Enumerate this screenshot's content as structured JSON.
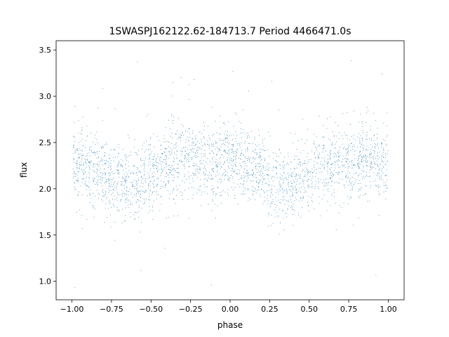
{
  "chart_data": {
    "type": "scatter",
    "title": "1SWASPJ162122.62-184713.7 Period 4466471.0s",
    "xlabel": "phase",
    "ylabel": "flux",
    "xlim": [
      -1.1,
      1.1
    ],
    "ylim": [
      0.8,
      3.6
    ],
    "x_ticks": [
      -1.0,
      -0.75,
      -0.5,
      -0.25,
      0.0,
      0.25,
      0.5,
      0.75,
      1.0
    ],
    "x_tick_labels": [
      "−1.00",
      "−0.75",
      "−0.50",
      "−0.25",
      "0.00",
      "0.25",
      "0.50",
      "0.75",
      "1.00"
    ],
    "y_ticks": [
      1.0,
      1.5,
      2.0,
      2.5,
      3.0,
      3.5
    ],
    "y_tick_labels": [
      "1.0",
      "1.5",
      "2.0",
      "2.5",
      "3.0",
      "3.5"
    ],
    "grid": false,
    "legend": "none",
    "marker_color": "#1f77b4",
    "series": [
      {
        "x_range": [
          -1.0,
          1.0
        ],
        "y_profile": {
          "phase": [
            -1.0,
            -0.9,
            -0.8,
            -0.7,
            -0.6,
            -0.5,
            -0.4,
            -0.3,
            -0.2,
            -0.1,
            0.0,
            0.1,
            0.2,
            0.3,
            0.4,
            0.5,
            0.6,
            0.7,
            0.8,
            0.9,
            1.0
          ],
          "median_flux": [
            2.3,
            2.25,
            2.15,
            2.05,
            2.05,
            2.15,
            2.25,
            2.3,
            2.3,
            2.3,
            2.3,
            2.25,
            2.15,
            2.05,
            2.05,
            2.15,
            2.25,
            2.3,
            2.3,
            2.3,
            2.3
          ],
          "typical_spread": 0.25,
          "outlier_range": [
            0.9,
            3.55
          ]
        },
        "approx_point_count": 9000
      }
    ]
  }
}
